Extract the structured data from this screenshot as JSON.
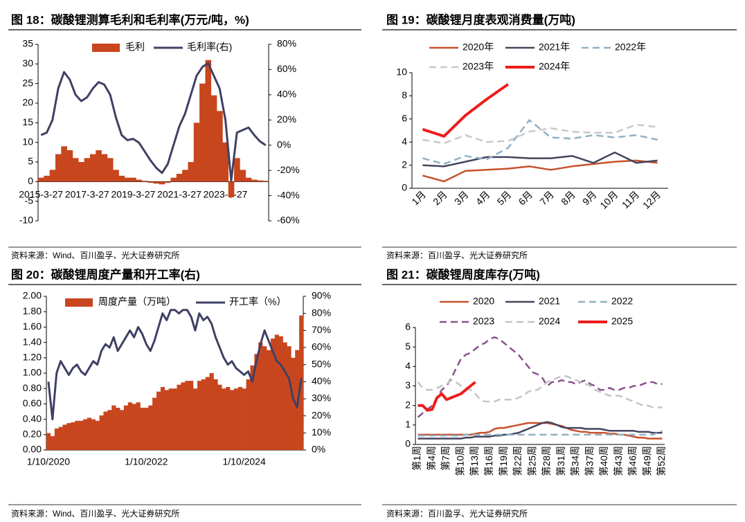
{
  "chart_data": [
    {
      "type": "combo",
      "title": "图 18：碳酸锂测算毛利和毛利率(万元/吨，%)",
      "source": "资料来源：Wind、百川盈孚、光大证券研究所",
      "categories": [
        "2015-3-27",
        null,
        null,
        null,
        null,
        null,
        null,
        null,
        "2017-3-27",
        null,
        null,
        null,
        null,
        null,
        null,
        null,
        "2019-3-27",
        null,
        null,
        null,
        null,
        null,
        null,
        null,
        "2021-3-27",
        null,
        null,
        null,
        null,
        null,
        null,
        null,
        "2023-3-27",
        null,
        null,
        null,
        null,
        null,
        null,
        null
      ],
      "series": [
        {
          "name": "毛利",
          "type": "bar",
          "color": "#c8461e",
          "values": [
            1,
            1.5,
            3,
            7,
            9,
            8,
            6,
            5,
            6,
            7,
            8,
            7,
            6,
            3,
            1.5,
            1,
            1,
            0.5,
            0.2,
            -0.3,
            -0.5,
            -0.7,
            -0.3,
            1,
            2,
            3,
            5,
            15,
            25,
            31,
            22,
            18,
            10,
            -4,
            6,
            3,
            1,
            0.5,
            0.3,
            0.2
          ]
        },
        {
          "name": "毛利率(右)",
          "type": "line",
          "axis": "y2",
          "color": "#3f4064",
          "values": [
            8,
            10,
            20,
            45,
            58,
            52,
            40,
            35,
            38,
            45,
            50,
            48,
            40,
            22,
            8,
            4,
            5,
            2,
            -5,
            -12,
            -18,
            -22,
            -15,
            0,
            15,
            25,
            40,
            55,
            62,
            65,
            55,
            45,
            20,
            -28,
            10,
            12,
            14,
            8,
            3,
            0
          ]
        }
      ],
      "ylim": [
        -10,
        35
      ],
      "yticks": [
        35,
        30,
        25,
        20,
        15,
        10,
        5,
        0,
        -5,
        -10
      ],
      "y2lim": [
        -60,
        80
      ],
      "y2ticks": [
        {
          "value": 80,
          "label": "80%"
        },
        {
          "value": 60,
          "label": "60%"
        },
        {
          "value": 40,
          "label": "40%"
        },
        {
          "value": 20,
          "label": "20%"
        },
        {
          "value": 0,
          "label": "0%"
        },
        {
          "value": -20,
          "label": "-20%"
        },
        {
          "value": -40,
          "label": "-40%"
        },
        {
          "value": -60,
          "label": "-60%"
        }
      ]
    },
    {
      "type": "line",
      "title": "图 19：碳酸锂月度表观消费量(万吨)",
      "source": "资料来源：百川盈孚、光大证券研究所",
      "categories": [
        "1月",
        "2月",
        "3月",
        "4月",
        "5月",
        "6月",
        "7月",
        "8月",
        "9月",
        "10月",
        "11月",
        "12月"
      ],
      "series": [
        {
          "name": "2020年",
          "color": "#c8502a",
          "line_style": "solid",
          "values": [
            1.1,
            0.6,
            1.5,
            1.6,
            1.7,
            1.9,
            1.6,
            1.9,
            2.1,
            2.3,
            2.4,
            2.2
          ]
        },
        {
          "name": "2021年",
          "color": "#44445e",
          "line_style": "solid",
          "values": [
            2.0,
            1.9,
            2.3,
            2.7,
            2.7,
            2.6,
            2.6,
            2.8,
            2.2,
            3.1,
            2.2,
            2.4
          ]
        },
        {
          "name": "2022年",
          "color": "#8fb0c4",
          "line_style": "dashed",
          "values": [
            2.6,
            2.1,
            2.8,
            2.5,
            3.5,
            5.9,
            4.4,
            4.3,
            4.6,
            4.4,
            4.6,
            4.2
          ]
        },
        {
          "name": "2023年",
          "color": "#c8c8c8",
          "line_style": "dashed",
          "values": [
            4.2,
            3.9,
            4.6,
            4.0,
            4.1,
            4.9,
            5.2,
            4.9,
            4.8,
            4.8,
            5.5,
            5.3
          ]
        },
        {
          "name": "2024年",
          "color": "#ee1c1c",
          "line_style": "bold",
          "values": [
            5.1,
            4.5,
            6.3,
            7.7,
            9.0,
            null,
            null,
            null,
            null,
            null,
            null,
            null
          ]
        }
      ],
      "ylim": [
        0,
        10
      ],
      "yticks": [
        0,
        2,
        4,
        6,
        8,
        10
      ]
    },
    {
      "type": "combo",
      "title": "图 20：碳酸锂周度产量和开工率(右)",
      "source": "资料来源：Wind、百川盈孚、光大证券研究所",
      "categories": [
        "1/10/2020",
        null,
        null,
        null,
        null,
        null,
        null,
        null,
        null,
        null,
        null,
        null,
        null,
        null,
        null,
        null,
        null,
        null,
        null,
        null,
        null,
        null,
        null,
        null,
        "1/10/2022",
        null,
        null,
        null,
        null,
        null,
        null,
        null,
        null,
        null,
        null,
        null,
        null,
        null,
        null,
        null,
        null,
        null,
        null,
        null,
        null,
        null,
        null,
        null,
        "1/10/2024",
        null,
        null,
        null,
        null,
        null,
        null,
        null,
        null,
        null,
        null,
        null,
        null,
        null,
        null
      ],
      "series": [
        {
          "name": "周度产量（万吨）",
          "type": "bar",
          "color": "#c8461e",
          "values": [
            0.22,
            0.18,
            0.28,
            0.3,
            0.33,
            0.35,
            0.36,
            0.38,
            0.38,
            0.4,
            0.42,
            0.4,
            0.38,
            0.45,
            0.5,
            0.52,
            0.58,
            0.55,
            0.52,
            0.58,
            0.62,
            0.6,
            0.62,
            0.55,
            0.55,
            0.58,
            0.68,
            0.76,
            0.82,
            0.78,
            0.8,
            0.8,
            0.85,
            0.88,
            0.9,
            0.9,
            0.8,
            0.9,
            0.92,
            0.95,
            1.0,
            0.92,
            0.85,
            0.8,
            0.82,
            0.78,
            0.8,
            0.82,
            0.8,
            0.92,
            1.1,
            1.25,
            1.4,
            1.35,
            1.3,
            1.45,
            1.5,
            1.48,
            1.4,
            1.35,
            1.2,
            1.3,
            1.75
          ]
        },
        {
          "name": "开工率（%）",
          "type": "line",
          "axis": "y2",
          "color": "#3f4064",
          "values": [
            40,
            18,
            45,
            52,
            48,
            44,
            48,
            50,
            46,
            44,
            48,
            52,
            50,
            58,
            62,
            60,
            66,
            58,
            62,
            66,
            70,
            66,
            72,
            68,
            62,
            58,
            64,
            72,
            80,
            76,
            82,
            82,
            80,
            82,
            82,
            78,
            70,
            80,
            76,
            78,
            74,
            66,
            60,
            54,
            50,
            52,
            48,
            46,
            44,
            46,
            40,
            52,
            62,
            70,
            64,
            58,
            52,
            50,
            46,
            42,
            30,
            25,
            42
          ]
        }
      ],
      "ylim": [
        0,
        2
      ],
      "yticks": [
        {
          "value": 0,
          "label": "0.00"
        },
        {
          "value": 0.2,
          "label": "0.20"
        },
        {
          "value": 0.4,
          "label": "0.40"
        },
        {
          "value": 0.6,
          "label": "0.60"
        },
        {
          "value": 0.8,
          "label": "0.80"
        },
        {
          "value": 1,
          "label": "1.00"
        },
        {
          "value": 1.2,
          "label": "1.20"
        },
        {
          "value": 1.4,
          "label": "1.40"
        },
        {
          "value": 1.6,
          "label": "1.60"
        },
        {
          "value": 1.8,
          "label": "1.80"
        },
        {
          "value": 2,
          "label": "2.00"
        }
      ],
      "y2lim": [
        0,
        90
      ],
      "y2ticks": [
        {
          "value": 0,
          "label": "0%"
        },
        {
          "value": 10,
          "label": "10%"
        },
        {
          "value": 20,
          "label": "20%"
        },
        {
          "value": 30,
          "label": "30%"
        },
        {
          "value": 40,
          "label": "40%"
        },
        {
          "value": 50,
          "label": "50%"
        },
        {
          "value": 60,
          "label": "60%"
        },
        {
          "value": 70,
          "label": "70%"
        },
        {
          "value": 80,
          "label": "80%"
        },
        {
          "value": 90,
          "label": "90%"
        }
      ]
    },
    {
      "type": "line",
      "title": "图 21：碳酸锂周度库存(万吨)",
      "source": "资料来源：百川盈孚、光大证券研究所",
      "categories": [
        "第1周",
        null,
        null,
        "第4周",
        null,
        null,
        "第7周",
        null,
        null,
        "第10周",
        null,
        null,
        "第13周",
        null,
        null,
        "第16周",
        null,
        null,
        "第19周",
        null,
        null,
        "第22周",
        null,
        null,
        "第25周",
        null,
        null,
        "第28周",
        null,
        null,
        "第31周",
        null,
        null,
        "第34周",
        null,
        null,
        "第37周",
        null,
        null,
        "第40周",
        null,
        null,
        "第43周",
        null,
        null,
        "第46周",
        null,
        null,
        "第49周",
        null,
        null,
        "第52周"
      ],
      "series": [
        {
          "name": "2020",
          "color": "#c8502a",
          "line_style": "solid",
          "values": [
            0.5,
            0.5,
            0.5,
            0.5,
            0.5,
            0.5,
            0.5,
            0.5,
            0.5,
            0.5,
            0.5,
            0.5,
            0.55,
            0.6,
            0.6,
            0.65,
            0.8,
            0.85,
            0.85,
            0.9,
            0.95,
            1.0,
            1.05,
            1.1,
            1.1,
            1.1,
            1.1,
            1.1,
            1.05,
            1.0,
            0.95,
            0.85,
            0.75,
            0.7,
            0.65,
            0.65,
            0.6,
            0.6,
            0.6,
            0.6,
            0.55,
            0.55,
            0.5,
            0.5,
            0.45,
            0.4,
            0.35,
            0.35,
            0.3,
            0.3,
            0.3,
            0.3
          ]
        },
        {
          "name": "2021",
          "color": "#44445e",
          "line_style": "solid",
          "values": [
            0.3,
            0.3,
            0.3,
            0.3,
            0.3,
            0.3,
            0.3,
            0.3,
            0.3,
            0.3,
            0.35,
            0.35,
            0.4,
            0.4,
            0.4,
            0.4,
            0.45,
            0.45,
            0.5,
            0.5,
            0.55,
            0.6,
            0.7,
            0.8,
            0.9,
            1.0,
            1.1,
            1.15,
            1.1,
            1.0,
            0.9,
            0.85,
            0.85,
            0.85,
            0.85,
            0.8,
            0.8,
            0.8,
            0.8,
            0.75,
            0.7,
            0.7,
            0.7,
            0.7,
            0.7,
            0.7,
            0.65,
            0.65,
            0.65,
            0.6,
            0.6,
            0.6
          ]
        },
        {
          "name": "2022",
          "color": "#8fb0c4",
          "line_style": "dashed",
          "values": [
            0.45,
            0.45,
            0.45,
            0.45,
            0.45,
            0.45,
            0.45,
            0.45,
            0.45,
            0.45,
            0.5,
            0.5,
            0.5,
            0.5,
            0.5,
            0.5,
            0.5,
            0.5,
            0.5,
            0.5,
            0.5,
            0.5,
            0.5,
            0.5,
            0.5,
            0.5,
            0.5,
            0.5,
            0.5,
            0.5,
            0.5,
            0.5,
            0.5,
            0.5,
            0.5,
            0.5,
            0.5,
            0.5,
            0.5,
            0.5,
            0.5,
            0.5,
            0.5,
            0.5,
            0.5,
            0.5,
            0.5,
            0.5,
            0.5,
            0.5,
            0.6,
            0.7
          ]
        },
        {
          "name": "2023",
          "color": "#8a4f8f",
          "line_style": "dashed",
          "values": [
            1.4,
            1.6,
            1.8,
            2.0,
            2.4,
            2.8,
            3.0,
            3.4,
            3.9,
            4.4,
            4.6,
            4.7,
            4.9,
            5.1,
            5.2,
            5.4,
            5.5,
            5.4,
            5.2,
            5.0,
            4.8,
            4.6,
            4.3,
            4.0,
            3.7,
            3.6,
            3.4,
            3.0,
            3.2,
            3.2,
            3.3,
            3.2,
            3.2,
            3.1,
            3.2,
            3.3,
            3.1,
            3.0,
            2.8,
            2.8,
            2.9,
            2.8,
            2.8,
            2.9,
            2.9,
            3.0,
            3.0,
            3.1,
            3.2,
            3.2,
            3.1,
            3.1
          ]
        },
        {
          "name": "2024",
          "color": "#c4c4c4",
          "line_style": "dashed",
          "values": [
            3.2,
            2.9,
            2.8,
            2.8,
            2.9,
            3.0,
            3.1,
            3.3,
            3.2,
            3.0,
            2.9,
            2.8,
            2.6,
            2.3,
            2.2,
            2.2,
            2.2,
            2.3,
            2.3,
            2.3,
            2.3,
            2.4,
            2.5,
            2.7,
            2.8,
            2.8,
            3.0,
            3.2,
            3.3,
            3.4,
            3.5,
            3.5,
            3.4,
            3.3,
            3.2,
            3.1,
            3.0,
            2.8,
            2.7,
            2.6,
            2.5,
            2.5,
            2.5,
            2.4,
            2.3,
            2.2,
            2.1,
            2.0,
            2.0,
            1.9,
            1.9,
            1.9
          ]
        },
        {
          "name": "2025",
          "color": "#ee1c1c",
          "line_style": "bold",
          "values": [
            2.0,
            2.0,
            1.75,
            1.8,
            2.4,
            2.6,
            2.3,
            2.4,
            2.5,
            2.6,
            2.8,
            3.0,
            3.2,
            null,
            null,
            null,
            null,
            null,
            null,
            null,
            null,
            null,
            null,
            null,
            null,
            null,
            null,
            null,
            null,
            null,
            null,
            null,
            null,
            null,
            null,
            null,
            null,
            null,
            null,
            null,
            null,
            null,
            null,
            null,
            null,
            null,
            null,
            null,
            null,
            null,
            null,
            null
          ]
        }
      ],
      "ylim": [
        0,
        6
      ],
      "yticks": [
        0,
        1,
        2,
        3,
        4,
        5,
        6
      ]
    }
  ]
}
